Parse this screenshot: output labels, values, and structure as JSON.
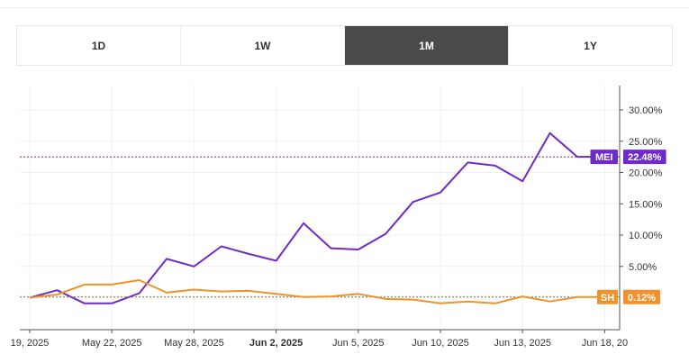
{
  "tabs": [
    {
      "label": "1D",
      "active": false
    },
    {
      "label": "1W",
      "active": false
    },
    {
      "label": "1M",
      "active": true
    },
    {
      "label": "1Y",
      "active": false
    }
  ],
  "chart_data": {
    "type": "line",
    "title": "",
    "xlabel": "",
    "ylabel": "",
    "ylim": [
      -5.4,
      34.6
    ],
    "yticks": [
      "30.00%",
      "25.00%",
      "20.00%",
      "15.00%",
      "10.00%",
      "5.00%"
    ],
    "ytick_values": [
      30,
      25,
      20,
      15,
      10,
      5
    ],
    "xticks": [
      {
        "label": "19, 2025",
        "i": 0,
        "bold": false
      },
      {
        "label": "May 22, 2025",
        "i": 3,
        "bold": false
      },
      {
        "label": "May 28, 2025",
        "i": 6,
        "bold": false
      },
      {
        "label": "Jun 2, 2025",
        "i": 9,
        "bold": true
      },
      {
        "label": "Jun 5, 2025",
        "i": 12,
        "bold": false
      },
      {
        "label": "Jun 10, 2025",
        "i": 15,
        "bold": false
      },
      {
        "label": "Jun 13, 2025",
        "i": 18,
        "bold": false
      },
      {
        "label": "Jun 18, 20",
        "i": 21,
        "bold": false
      }
    ],
    "series": [
      {
        "name": "MEI",
        "color": "#6f2bc9",
        "last_label": "22.48%",
        "values": [
          0.0,
          1.2,
          -0.9,
          -0.9,
          0.7,
          6.2,
          5.0,
          8.2,
          7.0,
          5.9,
          11.9,
          7.9,
          7.7,
          10.2,
          15.3,
          16.8,
          21.6,
          21.1,
          18.6,
          26.3,
          22.5,
          22.5
        ]
      },
      {
        "name": "SH",
        "color": "#f0922b",
        "last_label": "0.12%",
        "values": [
          0.0,
          0.5,
          2.1,
          2.1,
          2.8,
          0.8,
          1.3,
          1.0,
          1.1,
          0.6,
          0.1,
          0.2,
          0.6,
          -0.2,
          -0.3,
          -0.9,
          -0.6,
          -0.9,
          0.2,
          -0.6,
          0.1,
          0.1
        ]
      }
    ]
  }
}
